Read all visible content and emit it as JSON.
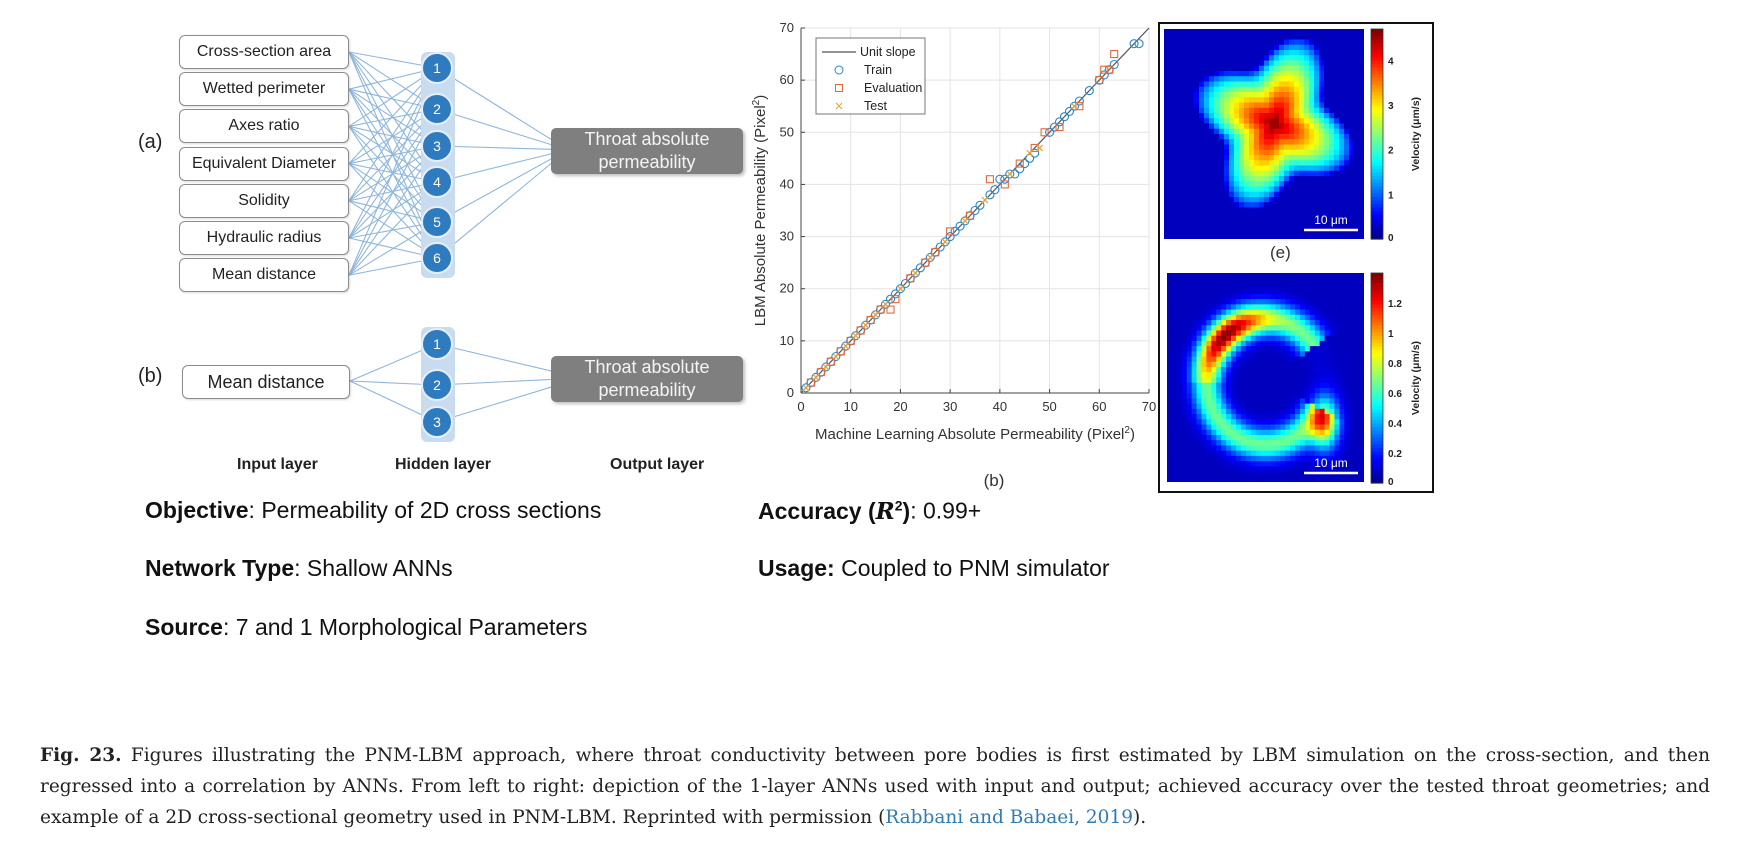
{
  "panel_a": {
    "label": "(a)",
    "inputs": [
      "Cross-section area",
      "Wetted perimeter",
      "Axes ratio",
      "Equivalent Diameter",
      "Solidity",
      "Hydraulic radius",
      "Mean distance"
    ],
    "hidden": [
      "1",
      "2",
      "3",
      "4",
      "5",
      "6"
    ],
    "output": [
      "Throat absolute",
      "permeability"
    ]
  },
  "panel_b": {
    "label": "(b)",
    "inputs": [
      "Mean distance"
    ],
    "hidden": [
      "1",
      "2",
      "3"
    ],
    "output": [
      "Throat absolute",
      "permeability"
    ]
  },
  "layers": {
    "input": "Input layer",
    "hidden": "Hidden layer",
    "output": "Output layer"
  },
  "info": {
    "objective_label": "Objective",
    "objective_value": ": Permeability of 2D cross sections",
    "network_label": "Network Type",
    "network_value": ": Shallow ANNs",
    "source_label": "Source",
    "source_value": ": 7 and 1 Morphological Parameters",
    "accuracy_label_pre": "Accuracy (",
    "accuracy_r": "R",
    "accuracy_sup": "2",
    "accuracy_label_post": ")",
    "accuracy_value": ": 0.99+",
    "usage_label": "Usage:",
    "usage_value": " Coupled to PNM simulator"
  },
  "chart_data": {
    "type": "scatter",
    "sublabel": "(b)",
    "xlabel": "Machine Learning Absolute Permeability (Pixel",
    "ylabel": "LBM Absolute Permeability (Pixel",
    "label_sup": "2",
    "xlim": [
      0,
      70
    ],
    "ylim": [
      0,
      70
    ],
    "xticks": [
      "0",
      "10",
      "20",
      "30",
      "40",
      "50",
      "60",
      "70"
    ],
    "yticks": [
      "0",
      "10",
      "20",
      "30",
      "40",
      "50",
      "60",
      "70"
    ],
    "grid": true,
    "legend_position": "top-left",
    "legend": [
      "Unit slope",
      "Train",
      "Evaluation",
      "Test"
    ],
    "series": [
      {
        "name": "Unit slope",
        "kind": "line",
        "color": "#555555",
        "x": [
          0,
          70
        ],
        "y": [
          0,
          70
        ]
      },
      {
        "name": "Train",
        "kind": "circle",
        "color": "#2a86c8",
        "x": [
          1,
          2,
          3,
          4,
          5,
          6,
          7,
          8,
          9,
          10,
          11,
          12,
          13,
          14,
          15,
          16,
          17,
          18,
          19,
          20,
          21,
          22,
          23,
          24,
          25,
          26,
          27,
          28,
          29,
          30,
          31,
          32,
          33,
          34,
          35,
          36,
          38,
          39,
          40,
          41,
          42,
          43,
          44,
          45,
          46,
          47,
          50,
          51,
          52,
          53,
          54,
          55,
          56,
          58,
          60,
          61,
          62,
          63,
          67,
          68
        ],
        "y": [
          1,
          2,
          3,
          4,
          5,
          6,
          7,
          8,
          9,
          10,
          11,
          12,
          13,
          14,
          15,
          16,
          17,
          18,
          19,
          20,
          21,
          22,
          23,
          24,
          25,
          26,
          27,
          28,
          29,
          30,
          31,
          32,
          33,
          34,
          35,
          36,
          38,
          39,
          41,
          41,
          42,
          42,
          43,
          44,
          45,
          46,
          50,
          51,
          52,
          53,
          54,
          55,
          56,
          58,
          60,
          61,
          62,
          63,
          67,
          67
        ]
      },
      {
        "name": "Evaluation",
        "kind": "square",
        "color": "#e06a3a",
        "x": [
          2,
          4,
          6,
          8,
          10,
          12,
          14,
          16,
          18,
          19,
          22,
          25,
          27,
          30,
          34,
          38,
          41,
          44,
          47,
          49,
          52,
          56,
          60,
          61,
          62,
          63
        ],
        "y": [
          2,
          4,
          6,
          8,
          10,
          12,
          14,
          16,
          16,
          18,
          22,
          25,
          27,
          31,
          34,
          41,
          40,
          44,
          47,
          50,
          51,
          55,
          60,
          62,
          62,
          65
        ]
      },
      {
        "name": "Test",
        "kind": "x",
        "color": "#e8a13c",
        "x": [
          1,
          3,
          5,
          7,
          9,
          11,
          13,
          15,
          17,
          20,
          23,
          26,
          29,
          33,
          37,
          42,
          46,
          48,
          55
        ],
        "y": [
          1,
          3,
          5,
          7,
          9,
          11,
          13,
          15,
          17,
          20,
          23,
          26,
          29,
          33,
          37,
          42,
          46,
          47,
          55
        ]
      }
    ]
  },
  "velocity_maps": {
    "label": "(e)",
    "top": {
      "colorbar_label": "Velocity (μm/s)",
      "ticks": [
        "0",
        "1",
        "2",
        "3",
        "4"
      ],
      "scale": "10 μm"
    },
    "bottom": {
      "colorbar_label": "Velocity (μm/s)",
      "ticks": [
        "0",
        "0.2",
        "0.4",
        "0.6",
        "0.8",
        "1",
        "1.2"
      ],
      "scale": "10 μm"
    }
  },
  "caption": {
    "figno": "Fig. 23.",
    "text": "  Figures illustrating the PNM-LBM approach, where throat conductivity between pore bodies is first estimated by LBM simulation on the cross-section, and then regressed into a correlation by ANNs. From left to right: depiction of the 1-layer ANNs used with input and output; achieved accuracy over the tested throat geometries; and example of a 2D cross-sectional geometry used in PNM-LBM. Reprinted with permission (",
    "cite": "Rabbani and Babaei, 2019",
    "end": ")."
  }
}
